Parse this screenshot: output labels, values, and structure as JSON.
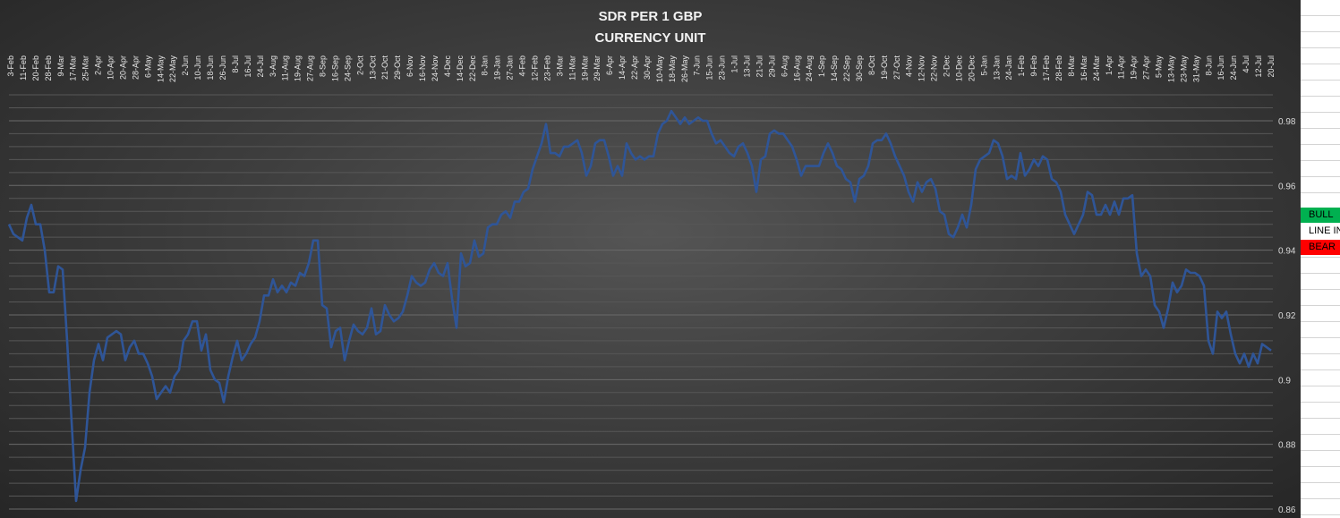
{
  "chart_data": {
    "type": "line",
    "title": "SDR PER 1 GBP",
    "subtitle": "CURRENCY UNIT",
    "xlabel": "",
    "ylabel": "",
    "ylim": [
      0.86,
      0.99
    ],
    "y_ticks": [
      0.86,
      0.88,
      0.9,
      0.92,
      0.94,
      0.96,
      0.98
    ],
    "y_tick_labels": [
      "0.86",
      "0.88",
      "0.9",
      "0.92",
      "0.94",
      "0.96",
      "0.98"
    ],
    "y_axis_position": "right",
    "grid": true,
    "x_tick_labels": [
      "3-Feb",
      "11-Feb",
      "20-Feb",
      "28-Feb",
      "9-Mar",
      "17-Mar",
      "25-Mar",
      "2-Apr",
      "10-Apr",
      "20-Apr",
      "28-Apr",
      "6-May",
      "14-May",
      "22-May",
      "2-Jun",
      "10-Jun",
      "18-Jun",
      "26-Jun",
      "8-Jul",
      "16-Jul",
      "24-Jul",
      "3-Aug",
      "11-Aug",
      "19-Aug",
      "27-Aug",
      "8-Sep",
      "16-Sep",
      "24-Sep",
      "2-Oct",
      "13-Oct",
      "21-Oct",
      "29-Oct",
      "6-Nov",
      "16-Nov",
      "24-Nov",
      "4-Dec",
      "14-Dec",
      "22-Dec",
      "8-Jan",
      "19-Jan",
      "27-Jan",
      "4-Feb",
      "12-Feb",
      "23-Feb",
      "3-Mar",
      "11-Mar",
      "19-Mar",
      "29-Mar",
      "6-Apr",
      "14-Apr",
      "22-Apr",
      "30-Apr",
      "10-May",
      "18-May",
      "26-May",
      "7-Jun",
      "15-Jun",
      "23-Jun",
      "1-Jul",
      "13-Jul",
      "21-Jul",
      "29-Jul",
      "6-Aug",
      "16-Aug",
      "24-Aug",
      "1-Sep",
      "14-Sep",
      "22-Sep",
      "30-Sep",
      "8-Oct",
      "19-Oct",
      "27-Oct",
      "4-Nov",
      "12-Nov",
      "22-Nov",
      "2-Dec",
      "10-Dec",
      "20-Dec",
      "5-Jan",
      "13-Jan",
      "24-Jan",
      "1-Feb",
      "9-Feb",
      "17-Feb",
      "28-Feb",
      "8-Mar",
      "16-Mar",
      "24-Mar",
      "1-Apr",
      "11-Apr",
      "19-Apr",
      "27-Apr",
      "5-May",
      "13-May",
      "23-May",
      "31-May",
      "8-Jun",
      "16-Jun",
      "24-Jun",
      "4-Jul",
      "12-Jul",
      "20-Jul"
    ],
    "series": [
      {
        "color": "#2f5597",
        "values": [
          0.948,
          0.945,
          0.944,
          0.943,
          0.95,
          0.954,
          0.948,
          0.948,
          0.94,
          0.927,
          0.927,
          0.935,
          0.934,
          0.912,
          0.887,
          0.8625,
          0.872,
          0.879,
          0.896,
          0.906,
          0.911,
          0.906,
          0.913,
          0.914,
          0.915,
          0.914,
          0.906,
          0.91,
          0.912,
          0.908,
          0.908,
          0.905,
          0.901,
          0.894,
          0.896,
          0.898,
          0.896,
          0.901,
          0.903,
          0.912,
          0.914,
          0.918,
          0.918,
          0.909,
          0.914,
          0.903,
          0.9,
          0.899,
          0.893,
          0.901,
          0.907,
          0.912,
          0.906,
          0.908,
          0.911,
          0.913,
          0.918,
          0.926,
          0.926,
          0.931,
          0.927,
          0.929,
          0.927,
          0.93,
          0.929,
          0.933,
          0.932,
          0.936,
          0.943,
          0.943,
          0.923,
          0.922,
          0.91,
          0.915,
          0.916,
          0.906,
          0.912,
          0.917,
          0.915,
          0.914,
          0.916,
          0.922,
          0.914,
          0.915,
          0.923,
          0.92,
          0.918,
          0.919,
          0.921,
          0.926,
          0.932,
          0.93,
          0.929,
          0.93,
          0.934,
          0.936,
          0.933,
          0.932,
          0.936,
          0.925,
          0.916,
          0.939,
          0.935,
          0.936,
          0.943,
          0.938,
          0.939,
          0.947,
          0.948,
          0.948,
          0.951,
          0.952,
          0.95,
          0.955,
          0.955,
          0.958,
          0.959,
          0.965,
          0.969,
          0.973,
          0.979,
          0.97,
          0.97,
          0.969,
          0.972,
          0.972,
          0.973,
          0.974,
          0.97,
          0.963,
          0.966,
          0.973,
          0.974,
          0.974,
          0.969,
          0.963,
          0.966,
          0.963,
          0.973,
          0.97,
          0.968,
          0.969,
          0.968,
          0.969,
          0.969,
          0.976,
          0.979,
          0.98,
          0.983,
          0.981,
          0.979,
          0.981,
          0.979,
          0.98,
          0.981,
          0.98,
          0.98,
          0.976,
          0.973,
          0.974,
          0.972,
          0.97,
          0.969,
          0.972,
          0.973,
          0.97,
          0.966,
          0.958,
          0.968,
          0.969,
          0.976,
          0.977,
          0.976,
          0.976,
          0.974,
          0.972,
          0.968,
          0.963,
          0.966,
          0.966,
          0.966,
          0.966,
          0.97,
          0.973,
          0.97,
          0.966,
          0.965,
          0.962,
          0.961,
          0.955,
          0.962,
          0.963,
          0.966,
          0.973,
          0.974,
          0.974,
          0.976,
          0.973,
          0.969,
          0.966,
          0.963,
          0.958,
          0.955,
          0.961,
          0.958,
          0.961,
          0.962,
          0.959,
          0.952,
          0.951,
          0.945,
          0.944,
          0.947,
          0.951,
          0.947,
          0.954,
          0.965,
          0.968,
          0.969,
          0.97,
          0.974,
          0.973,
          0.969,
          0.962,
          0.963,
          0.962,
          0.97,
          0.963,
          0.965,
          0.968,
          0.966,
          0.969,
          0.968,
          0.962,
          0.961,
          0.958,
          0.951,
          0.948,
          0.945,
          0.948,
          0.951,
          0.958,
          0.957,
          0.951,
          0.951,
          0.954,
          0.951,
          0.955,
          0.951,
          0.956,
          0.956,
          0.957,
          0.939,
          0.932,
          0.934,
          0.932,
          0.923,
          0.921,
          0.916,
          0.922,
          0.93,
          0.927,
          0.929,
          0.934,
          0.933,
          0.933,
          0.932,
          0.929,
          0.912,
          0.908,
          0.921,
          0.919,
          0.921,
          0.914,
          0.908,
          0.905,
          0.908,
          0.904,
          0.908,
          0.905,
          0.911,
          0.91,
          0.909
        ]
      }
    ]
  },
  "side_panel": {
    "bull": {
      "label": "BULL",
      "color": "#00b050"
    },
    "line_in": {
      "label": "LINE IN",
      "color": "#ffffff"
    },
    "bear": {
      "label": "BEAR",
      "color": "#ff0000"
    }
  }
}
